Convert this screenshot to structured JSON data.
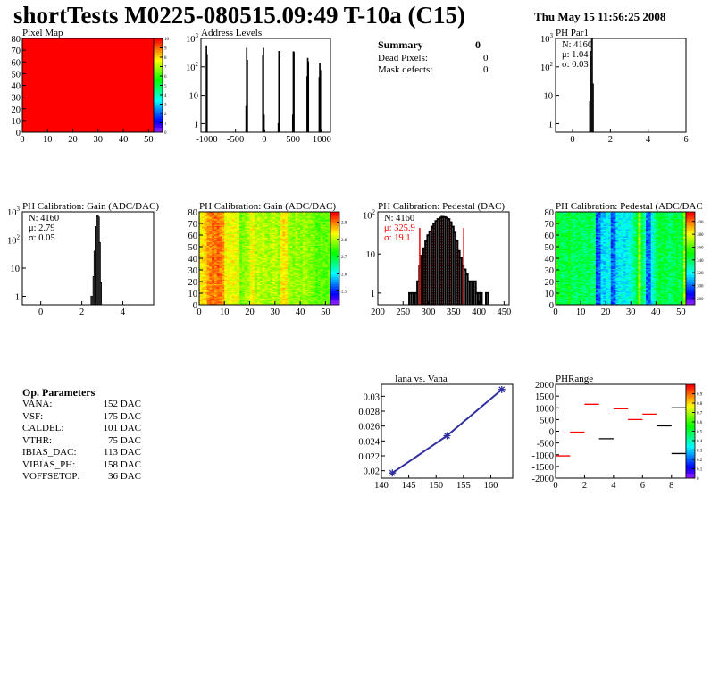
{
  "header": {
    "title": "shortTests M0225-080515.09:49 T-10a (C15)",
    "date": "Thu May 15 11:56:25 2008"
  },
  "summary": {
    "title": "Summary",
    "total": "0",
    "rows": [
      {
        "label": "Dead Pixels:",
        "value": "0"
      },
      {
        "label": "Mask defects:",
        "value": "0"
      }
    ]
  },
  "op_parameters": {
    "title": "Op. Parameters",
    "rows": [
      {
        "label": "VANA:",
        "value": "152 DAC"
      },
      {
        "label": "VSF:",
        "value": "175 DAC"
      },
      {
        "label": "CALDEL:",
        "value": "101 DAC"
      },
      {
        "label": "VTHR:",
        "value": "75 DAC"
      },
      {
        "label": "IBIAS_DAC:",
        "value": "113 DAC"
      },
      {
        "label": "VIBIAS_PH:",
        "value": "158 DAC"
      },
      {
        "label": "VOFFSETOP:",
        "value": "36 DAC"
      }
    ]
  },
  "chart_data": [
    {
      "id": "pixel-map",
      "type": "heatmap",
      "title": "Pixel Map",
      "xlim": [
        0,
        52
      ],
      "ylim": [
        0,
        80
      ],
      "zlim": [
        0,
        10
      ],
      "value": 10,
      "xticks": [
        0,
        10,
        20,
        30,
        40,
        50
      ],
      "yticks": [
        0,
        10,
        20,
        30,
        40,
        50,
        60,
        70,
        80
      ],
      "zticks": [
        0,
        1,
        2,
        3,
        4,
        5,
        6,
        7,
        8,
        9,
        10
      ]
    },
    {
      "id": "address-levels",
      "type": "bar",
      "title": "Address Levels",
      "log_y": true,
      "xlim": [
        -1100,
        1150
      ],
      "ylim": [
        0.5,
        1000
      ],
      "bin_width": 10,
      "xticks": [
        -1000,
        -500,
        0,
        500,
        1000
      ],
      "yticks": [
        1,
        10,
        100,
        1000
      ],
      "bins": [
        [
          -1010,
          550
        ],
        [
          -1000,
          270
        ],
        [
          -320,
          4
        ],
        [
          -310,
          450
        ],
        [
          -300,
          170
        ],
        [
          -30,
          250
        ],
        [
          -20,
          450
        ],
        [
          -10,
          2
        ],
        [
          0,
          0.6
        ],
        [
          240,
          1
        ],
        [
          250,
          350
        ],
        [
          260,
          330
        ],
        [
          490,
          2
        ],
        [
          500,
          340
        ],
        [
          510,
          330
        ],
        [
          740,
          45
        ],
        [
          750,
          200
        ],
        [
          760,
          150
        ],
        [
          950,
          42
        ],
        [
          960,
          130
        ],
        [
          970,
          75
        ],
        [
          990,
          0.6
        ]
      ]
    },
    {
      "id": "ph-par1",
      "type": "bar",
      "title": "PH Par1",
      "log_y": true,
      "xlim": [
        -0.9,
        6
      ],
      "ylim": [
        0.5,
        1000
      ],
      "bin_width": 0.05,
      "xticks": [
        0,
        2,
        4,
        6
      ],
      "yticks": [
        1,
        10,
        100,
        1000
      ],
      "stats": [
        "N: 4160",
        "μ: 1.04",
        "σ: 0.03"
      ],
      "stats_colors": [
        "#000000",
        "#000000",
        "#000000"
      ],
      "bins": [
        [
          0.9,
          6
        ],
        [
          0.95,
          350
        ],
        [
          1.0,
          1000
        ],
        [
          1.05,
          25
        ]
      ]
    },
    {
      "id": "gain-hist",
      "type": "bar",
      "title": "PH Calibration: Gain (ADC/DAC)",
      "log_y": true,
      "xlim": [
        -0.9,
        5.5
      ],
      "ylim": [
        0.5,
        1000
      ],
      "bin_width": 0.05,
      "xticks": [
        0,
        2,
        4
      ],
      "yticks": [
        1,
        10,
        100,
        1000
      ],
      "stats": [
        "N: 4160",
        "μ: 2.79",
        "σ: 0.05"
      ],
      "stats_colors": [
        "#000000",
        "#000000",
        "#000000"
      ],
      "bins": [
        [
          2.45,
          1
        ],
        [
          2.5,
          0
        ],
        [
          2.55,
          5
        ],
        [
          2.6,
          40
        ],
        [
          2.65,
          300
        ],
        [
          2.7,
          700
        ],
        [
          2.75,
          720
        ],
        [
          2.8,
          650
        ],
        [
          2.85,
          80
        ],
        [
          2.9,
          3
        ]
      ]
    },
    {
      "id": "gain-map",
      "type": "heatmap",
      "title": "PH Calibration: Gain (ADC/DAC)",
      "xlim": [
        0,
        52
      ],
      "ylim": [
        0,
        80
      ],
      "zlim": [
        2.42,
        2.96
      ],
      "xticks": [
        0,
        10,
        20,
        30,
        40,
        50
      ],
      "yticks": [
        0,
        10,
        20,
        30,
        40,
        50,
        60,
        70,
        80
      ],
      "zticks": [
        2.5,
        2.6,
        2.7,
        2.8,
        2.9
      ],
      "column_means": [
        2.84,
        2.85,
        2.86,
        2.89,
        2.9,
        2.91,
        2.9,
        2.91,
        2.9,
        2.89,
        2.84,
        2.83,
        2.83,
        2.84,
        2.83,
        2.84,
        2.77,
        2.78,
        2.79,
        2.8,
        2.83,
        2.84,
        2.8,
        2.81,
        2.8,
        2.81,
        2.8,
        2.79,
        2.8,
        2.81,
        2.8,
        2.79,
        2.84,
        2.85,
        2.84,
        2.8,
        2.79,
        2.78,
        2.8,
        2.79,
        2.78,
        2.8,
        2.79,
        2.78,
        2.78,
        2.77,
        2.76,
        2.76,
        2.77,
        2.76,
        2.76,
        2.77
      ],
      "noise": 0.03
    },
    {
      "id": "pedestal-hist",
      "type": "bar",
      "title": "PH Calibration: Pedestal (DAC)",
      "log_y": true,
      "xlim": [
        200,
        460
      ],
      "ylim": [
        0.5,
        120
      ],
      "bin_width": 4,
      "xticks": [
        200,
        250,
        300,
        350,
        400,
        450
      ],
      "yticks": [
        1,
        10,
        100
      ],
      "stats": [
        "N: 4160",
        "μ: 325.9",
        "σ: 19.1"
      ],
      "stats_colors": [
        "#000000",
        "#ff0000",
        "#ff0000"
      ],
      "cut_lines": [
        283,
        370
      ],
      "cut_color": "#ff0000",
      "bin_start": 262,
      "values": [
        1,
        1,
        0,
        1,
        2,
        5,
        9,
        14,
        22,
        30,
        38,
        50,
        60,
        70,
        78,
        85,
        90,
        88,
        85,
        78,
        65,
        50,
        35,
        22,
        12,
        8,
        5,
        4,
        3,
        2,
        2,
        1,
        2,
        1,
        1,
        1,
        0,
        0,
        1,
        0
      ]
    },
    {
      "id": "pedestal-map",
      "type": "heatmap",
      "title": "PH Calibration: Pedestal (ADC/DAC",
      "xlim": [
        0,
        52
      ],
      "ylim": [
        0,
        80
      ],
      "zlim": [
        270,
        415
      ],
      "xticks": [
        0,
        10,
        20,
        30,
        40,
        50
      ],
      "yticks": [
        0,
        10,
        20,
        30,
        40,
        50,
        60,
        70,
        80
      ],
      "zticks": [
        280,
        300,
        320,
        340,
        360,
        380,
        400
      ],
      "column_means": [
        350,
        345,
        342,
        340,
        342,
        348,
        340,
        338,
        340,
        342,
        340,
        338,
        340,
        342,
        338,
        336,
        295,
        300,
        315,
        312,
        318,
        320,
        298,
        300,
        315,
        318,
        320,
        316,
        318,
        322,
        330,
        335,
        345,
        372,
        340,
        330,
        298,
        300,
        320,
        330,
        340,
        345,
        342,
        345,
        340,
        338,
        340,
        342,
        345,
        340,
        345,
        370
      ],
      "noise": 10
    },
    {
      "id": "iana-vs-vana",
      "type": "line",
      "title": "Iana vs. Vana",
      "xlim": [
        140,
        164
      ],
      "ylim": [
        0.019,
        0.0316
      ],
      "xticks": [
        140,
        145,
        150,
        155,
        160
      ],
      "yticks": [
        0.02,
        0.022,
        0.024,
        0.026,
        0.028,
        0.03
      ],
      "color": "#3030a0",
      "x": [
        142,
        152,
        162
      ],
      "y": [
        0.0197,
        0.0247,
        0.0309
      ]
    },
    {
      "id": "ph-range",
      "type": "heatmap",
      "title": "PHRange",
      "xlim": [
        0,
        9
      ],
      "ylim": [
        -2000,
        2000
      ],
      "zlim": [
        0,
        1
      ],
      "xticks": [
        0,
        2,
        4,
        6,
        8
      ],
      "yticks": [
        2000,
        1500,
        1000,
        500,
        0,
        -500,
        -1000,
        -1500,
        -2000
      ],
      "zticks": [
        0,
        0.1,
        0.2,
        0.3,
        0.4,
        0.5,
        0.6,
        0.7,
        0.8,
        0.9,
        1
      ],
      "segments": [
        [
          0,
          1,
          -1050,
          "#ff0000"
        ],
        [
          1,
          2,
          -40,
          "#ff0000"
        ],
        [
          2,
          3,
          1150,
          "#ff0000"
        ],
        [
          3,
          4,
          -320,
          "#000000"
        ],
        [
          4,
          5,
          960,
          "#ff0000"
        ],
        [
          5,
          6,
          500,
          "#ff0000"
        ],
        [
          6,
          7,
          730,
          "#ff0000"
        ],
        [
          7,
          8,
          230,
          "#000000"
        ],
        [
          8,
          9,
          1000,
          "#000000"
        ],
        [
          8,
          9,
          -950,
          "#000000"
        ]
      ]
    }
  ]
}
